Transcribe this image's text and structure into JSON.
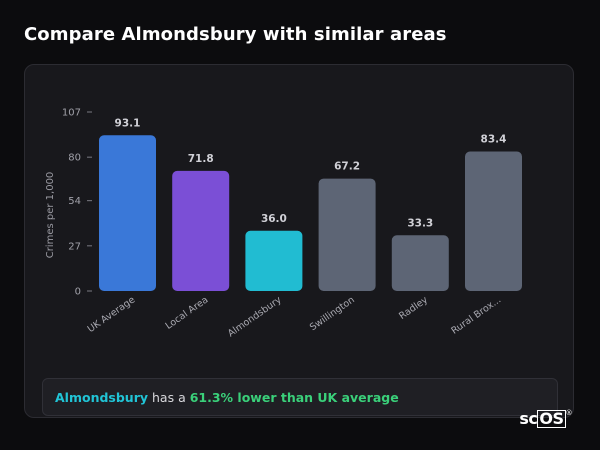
{
  "page": {
    "title": "Compare Almondsbury with similar areas"
  },
  "chart_data": {
    "type": "bar",
    "ylabel": "Crimes per 1,000",
    "xlabel": "",
    "ylim": [
      0,
      107
    ],
    "yticks": [
      0,
      27,
      54,
      80,
      107
    ],
    "categories": [
      "UK Average",
      "Local Area",
      "Almondsbury",
      "Swillington",
      "Radley",
      "Rural Brox..."
    ],
    "values": [
      93.1,
      71.8,
      36.0,
      67.2,
      33.3,
      83.4
    ],
    "value_labels": [
      "93.1",
      "71.8",
      "36.0",
      "67.2",
      "33.3",
      "83.4"
    ],
    "colors": [
      "#3a78d8",
      "#7b4fd6",
      "#21bcd2",
      "#5d6575",
      "#5d6575",
      "#5d6575"
    ],
    "grid": false,
    "legend": "none"
  },
  "summary": {
    "area": "Almondsbury",
    "connector": " has a ",
    "stat": "61.3% lower than UK average"
  },
  "brand": {
    "text_left": "sc",
    "text_box": "OS",
    "reg": "®"
  }
}
